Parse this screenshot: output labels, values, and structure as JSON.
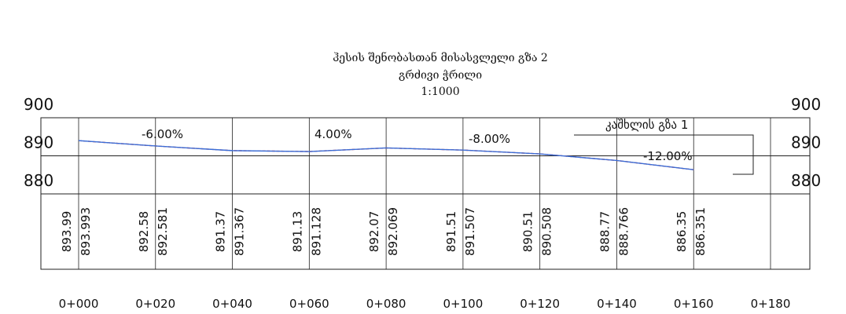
{
  "chart_data": {
    "type": "line",
    "title": "ჰესის შენობასთან მისასვლელი გზა 2",
    "subtitle": "გრძივი ჭრილი",
    "scale": "1:1000",
    "x": [
      0,
      20,
      40,
      60,
      80,
      100,
      120,
      140,
      160
    ],
    "series": [
      {
        "color": "#e0202a",
        "values": [
          893.99,
          892.58,
          891.37,
          891.13,
          892.07,
          891.51,
          890.51,
          888.77,
          886.35
        ]
      },
      {
        "color": "#3a6fd8",
        "values": [
          893.993,
          892.581,
          891.367,
          891.128,
          892.069,
          891.507,
          890.508,
          888.766,
          886.351
        ]
      }
    ],
    "xlim": [
      0,
      180
    ],
    "xticks": [
      {
        "value": 0,
        "label": "0+000"
      },
      {
        "value": 20,
        "label": "0+020"
      },
      {
        "value": 40,
        "label": "0+040"
      },
      {
        "value": 60,
        "label": "0+060"
      },
      {
        "value": 80,
        "label": "0+080"
      },
      {
        "value": 100,
        "label": "0+100"
      },
      {
        "value": 120,
        "label": "0+120"
      },
      {
        "value": 140,
        "label": "0+140"
      },
      {
        "value": 160,
        "label": "0+160"
      },
      {
        "value": 180,
        "label": "0+180"
      }
    ],
    "ylim": [
      880,
      900
    ],
    "yticks": [
      880,
      890,
      900
    ],
    "grid": true,
    "annotations": [
      "-6.00%",
      "4.00%",
      "-8.00%",
      "-12.00%",
      "კაშხლის გზა 1"
    ]
  }
}
